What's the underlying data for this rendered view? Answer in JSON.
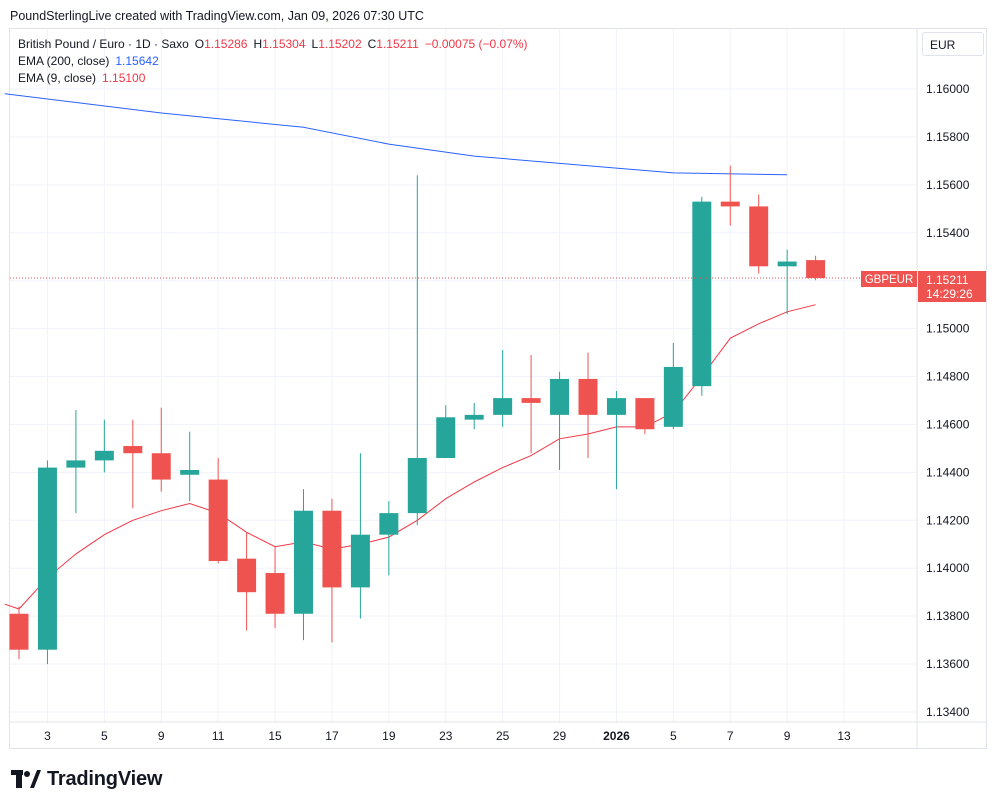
{
  "header": {
    "text": "PoundSterlingLive created with TradingView.com, Jan 09, 2026 07:30 UTC"
  },
  "legend": {
    "symbol": "British Pound / Euro · 1D · Saxo",
    "o_key": "O",
    "o_val": "1.15286",
    "h_key": "H",
    "h_val": "1.15304",
    "l_key": "L",
    "l_val": "1.15202",
    "c_key": "C",
    "c_val": "1.15211",
    "change": "−0.00075 (−0.07%)",
    "ema200_label": "EMA (200, close)",
    "ema200_val": "1.15642",
    "ema9_label": "EMA (9, close)",
    "ema9_val": "1.15100"
  },
  "currency_button": "EUR",
  "price_label": {
    "symbol": "GBPEUR",
    "price": "1.15211",
    "countdown": "14:29:26"
  },
  "footer": {
    "brand": "TradingView"
  },
  "colors": {
    "up": "#26a69a",
    "down": "#ef5350",
    "ema200": "#2962ff",
    "ema9": "#f23645",
    "grid": "#f0f3fa"
  },
  "chart_data": {
    "type": "candlestick",
    "y_ticks": [
      "1.13400",
      "1.13600",
      "1.13800",
      "1.14000",
      "1.14200",
      "1.14400",
      "1.14600",
      "1.14800",
      "1.15000",
      "1.15200",
      "1.15400",
      "1.15600",
      "1.15800",
      "1.16000"
    ],
    "ylim": [
      1.1334,
      1.1617
    ],
    "x_ticks": [
      {
        "label": "3",
        "i": 1
      },
      {
        "label": "5",
        "i": 3
      },
      {
        "label": "9",
        "i": 5
      },
      {
        "label": "11",
        "i": 7
      },
      {
        "label": "15",
        "i": 9
      },
      {
        "label": "17",
        "i": 11
      },
      {
        "label": "19",
        "i": 13
      },
      {
        "label": "23",
        "i": 15
      },
      {
        "label": "25",
        "i": 17
      },
      {
        "label": "29",
        "i": 19
      },
      {
        "label": "2026",
        "i": 21,
        "bold": true
      },
      {
        "label": "5",
        "i": 23
      },
      {
        "label": "7",
        "i": 25
      },
      {
        "label": "9",
        "i": 27
      },
      {
        "label": "13",
        "i": 29
      }
    ],
    "candles": [
      {
        "o": 1.1381,
        "h": 1.1384,
        "l": 1.1362,
        "c": 1.1366
      },
      {
        "o": 1.1366,
        "h": 1.1445,
        "l": 1.136,
        "c": 1.1442
      },
      {
        "o": 1.1442,
        "h": 1.1466,
        "l": 1.1423,
        "c": 1.1445
      },
      {
        "o": 1.1445,
        "h": 1.1462,
        "l": 1.144,
        "c": 1.1449
      },
      {
        "o": 1.1451,
        "h": 1.1462,
        "l": 1.1425,
        "c": 1.1448
      },
      {
        "o": 1.1448,
        "h": 1.1467,
        "l": 1.1432,
        "c": 1.1437
      },
      {
        "o": 1.1439,
        "h": 1.1457,
        "l": 1.1428,
        "c": 1.1441
      },
      {
        "o": 1.1437,
        "h": 1.1446,
        "l": 1.1402,
        "c": 1.1403
      },
      {
        "o": 1.1404,
        "h": 1.1415,
        "l": 1.1374,
        "c": 1.139
      },
      {
        "o": 1.1398,
        "h": 1.1409,
        "l": 1.1375,
        "c": 1.1381
      },
      {
        "o": 1.1381,
        "h": 1.1433,
        "l": 1.137,
        "c": 1.1424
      },
      {
        "o": 1.1424,
        "h": 1.1429,
        "l": 1.1369,
        "c": 1.1392
      },
      {
        "o": 1.1392,
        "h": 1.1448,
        "l": 1.1379,
        "c": 1.1414
      },
      {
        "o": 1.1414,
        "h": 1.1428,
        "l": 1.1397,
        "c": 1.1423
      },
      {
        "o": 1.1423,
        "h": 1.1564,
        "l": 1.1418,
        "c": 1.1446
      },
      {
        "o": 1.1446,
        "h": 1.1468,
        "l": 1.1446,
        "c": 1.1463
      },
      {
        "o": 1.1462,
        "h": 1.1469,
        "l": 1.1458,
        "c": 1.1464
      },
      {
        "o": 1.1464,
        "h": 1.1491,
        "l": 1.1459,
        "c": 1.1471
      },
      {
        "o": 1.1471,
        "h": 1.1489,
        "l": 1.1448,
        "c": 1.1469
      },
      {
        "o": 1.1464,
        "h": 1.1482,
        "l": 1.1441,
        "c": 1.1479
      },
      {
        "o": 1.1479,
        "h": 1.149,
        "l": 1.1446,
        "c": 1.1464
      },
      {
        "o": 1.1464,
        "h": 1.1474,
        "l": 1.1433,
        "c": 1.1471
      },
      {
        "o": 1.1471,
        "h": 1.1471,
        "l": 1.1456,
        "c": 1.1458
      },
      {
        "o": 1.1459,
        "h": 1.1494,
        "l": 1.1458,
        "c": 1.1484
      },
      {
        "o": 1.1476,
        "h": 1.1555,
        "l": 1.1472,
        "c": 1.1553
      },
      {
        "o": 1.1553,
        "h": 1.1568,
        "l": 1.1543,
        "c": 1.1551
      },
      {
        "o": 1.1551,
        "h": 1.1556,
        "l": 1.1523,
        "c": 1.1526
      },
      {
        "o": 1.1526,
        "h": 1.1533,
        "l": 1.1506,
        "c": 1.1528
      },
      {
        "o": 1.15286,
        "h": 1.15304,
        "l": 1.15202,
        "c": 1.15211
      }
    ],
    "ema200": [
      {
        "i": -0.5,
        "v": 1.1598
      },
      {
        "i": 5,
        "v": 1.159
      },
      {
        "i": 10,
        "v": 1.1584
      },
      {
        "i": 13,
        "v": 1.1577
      },
      {
        "i": 16,
        "v": 1.1572
      },
      {
        "i": 20,
        "v": 1.1568
      },
      {
        "i": 23,
        "v": 1.1565
      },
      {
        "i": 27,
        "v": 1.15642
      }
    ],
    "ema9": [
      {
        "i": -0.5,
        "v": 1.1385
      },
      {
        "i": 0,
        "v": 1.1383
      },
      {
        "i": 1,
        "v": 1.1396
      },
      {
        "i": 2,
        "v": 1.1406
      },
      {
        "i": 3,
        "v": 1.1414
      },
      {
        "i": 4,
        "v": 1.142
      },
      {
        "i": 5,
        "v": 1.1424
      },
      {
        "i": 6,
        "v": 1.1427
      },
      {
        "i": 7,
        "v": 1.1423
      },
      {
        "i": 8,
        "v": 1.1415
      },
      {
        "i": 9,
        "v": 1.1409
      },
      {
        "i": 10,
        "v": 1.1411
      },
      {
        "i": 11,
        "v": 1.1408
      },
      {
        "i": 12,
        "v": 1.141
      },
      {
        "i": 13,
        "v": 1.1413
      },
      {
        "i": 14,
        "v": 1.142
      },
      {
        "i": 15,
        "v": 1.1429
      },
      {
        "i": 16,
        "v": 1.1436
      },
      {
        "i": 17,
        "v": 1.1442
      },
      {
        "i": 18,
        "v": 1.1447
      },
      {
        "i": 19,
        "v": 1.1454
      },
      {
        "i": 20,
        "v": 1.1456
      },
      {
        "i": 21,
        "v": 1.1459
      },
      {
        "i": 22,
        "v": 1.1459
      },
      {
        "i": 23,
        "v": 1.1465
      },
      {
        "i": 24,
        "v": 1.148
      },
      {
        "i": 25,
        "v": 1.1496
      },
      {
        "i": 26,
        "v": 1.1502
      },
      {
        "i": 27,
        "v": 1.1507
      },
      {
        "i": 28,
        "v": 1.151
      }
    ],
    "last_price": 1.15211
  }
}
